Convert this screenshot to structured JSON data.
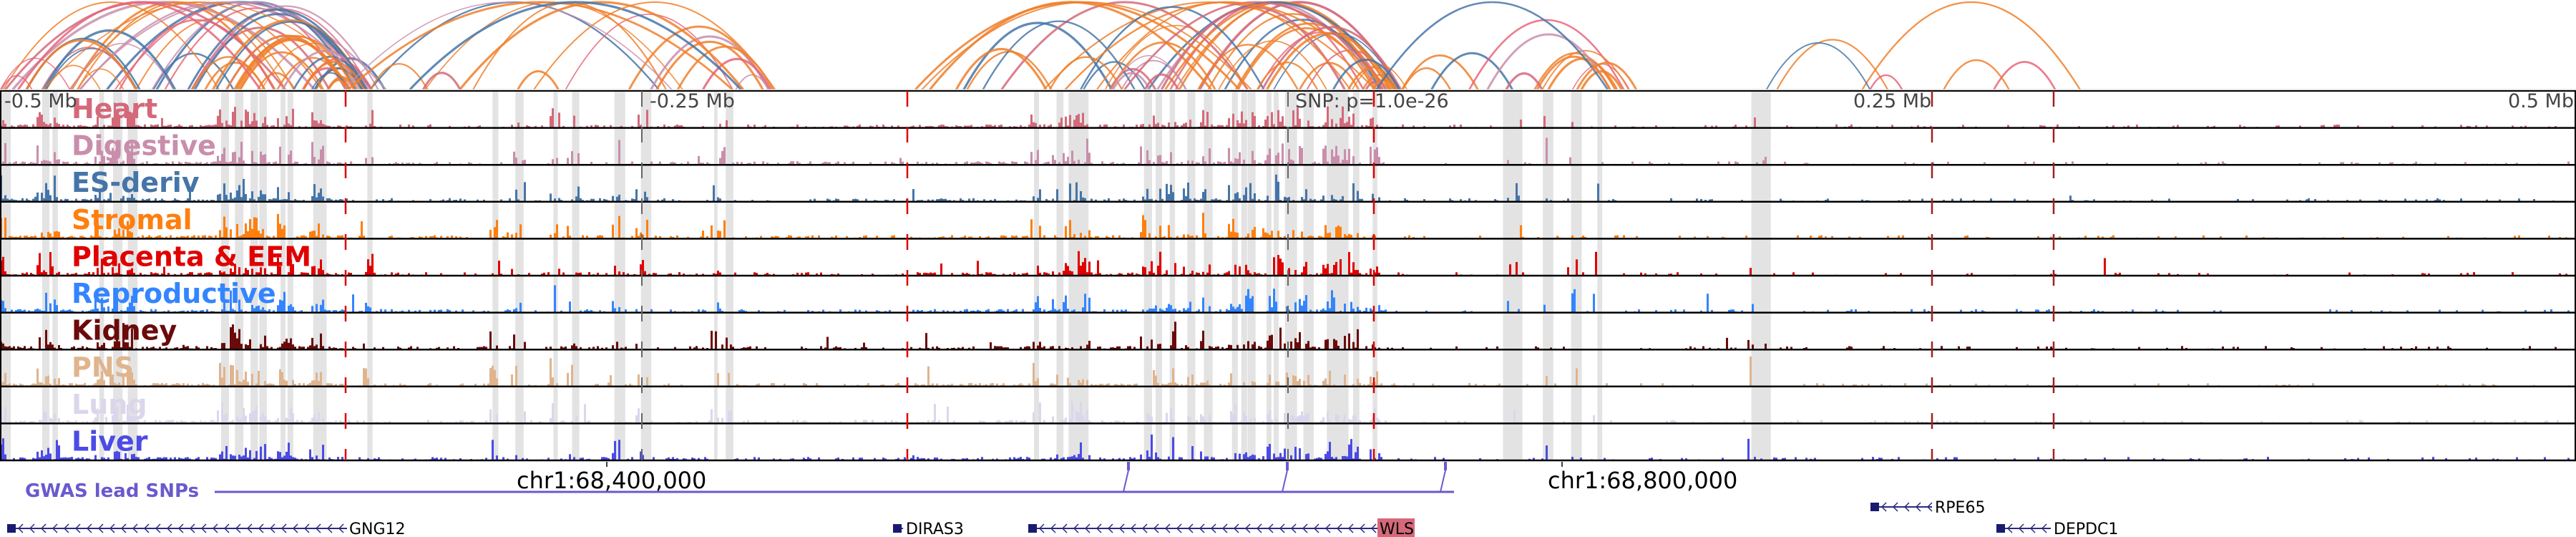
{
  "axis": {
    "left2": "-0.5 Mb",
    "left1": "-0.25 Mb",
    "center": "SNP: p=1.0e-26",
    "right1": "0.25 Mb",
    "right2": "0.5 Mb"
  },
  "tracks": [
    {
      "label": "Heart",
      "color": "#d4697a"
    },
    {
      "label": "Digestive",
      "color": "#c98eab"
    },
    {
      "label": "ES-deriv",
      "color": "#4575a8"
    },
    {
      "label": "Stromal",
      "color": "#ff7f0e"
    },
    {
      "label": "Placenta & EEM",
      "color": "#e00000"
    },
    {
      "label": "Reproductive",
      "color": "#3385ff"
    },
    {
      "label": "Kidney",
      "color": "#6b0a0a"
    },
    {
      "label": "PNS",
      "color": "#e0b48c"
    },
    {
      "label": "Lung",
      "color": "#dcd6ec"
    },
    {
      "label": "Liver",
      "color": "#4b4be6"
    }
  ],
  "coordinates": [
    "chr1:68,400,000",
    "chr1:68,800,000"
  ],
  "gwas_label": "GWAS lead SNPs",
  "genes": [
    "GNG12",
    "DIRAS3",
    "WLS",
    "RPE65",
    "DEPDC1"
  ],
  "highlight_color": "#d4697a"
}
